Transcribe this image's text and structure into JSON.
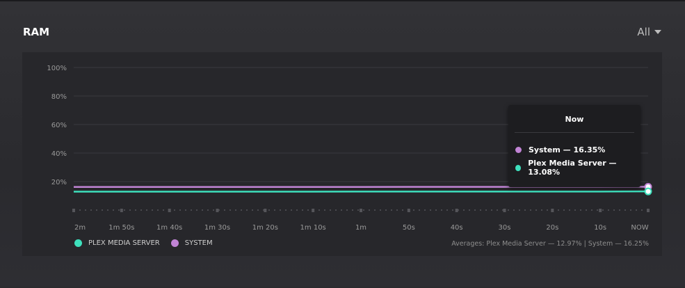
{
  "panel": {
    "title": "RAM",
    "filter_label": "All"
  },
  "colors": {
    "plex": "#3ee0bd",
    "system": "#c184d5"
  },
  "legend": [
    {
      "label": "PLEX MEDIA SERVER",
      "color": "#3ee0bd"
    },
    {
      "label": "SYSTEM",
      "color": "#c184d5"
    }
  ],
  "averages_text": "Averages: Plex Media Server — 12.97% | System — 16.25%",
  "tooltip": {
    "title": "Now",
    "rows": [
      {
        "text": "System — 16.35%",
        "color": "#c184d5"
      },
      {
        "text": "Plex Media Server — 13.08%",
        "color": "#3ee0bd"
      }
    ]
  },
  "chart_data": {
    "type": "line",
    "title": "RAM",
    "xlabel": "",
    "ylabel": "",
    "ylim": [
      0,
      100
    ],
    "y_ticks": [
      "20%",
      "40%",
      "60%",
      "80%",
      "100%"
    ],
    "y_tick_values": [
      20,
      40,
      60,
      80,
      100
    ],
    "categories": [
      "2m",
      "1m 50s",
      "1m 40s",
      "1m 30s",
      "1m 20s",
      "1m 10s",
      "1m",
      "50s",
      "40s",
      "30s",
      "20s",
      "10s",
      "NOW"
    ],
    "series": [
      {
        "name": "System",
        "color": "#c184d5",
        "values": [
          16.2,
          16.2,
          16.2,
          16.2,
          16.2,
          16.2,
          16.2,
          16.3,
          16.3,
          16.3,
          16.3,
          16.3,
          16.35
        ]
      },
      {
        "name": "Plex Media Server",
        "color": "#3ee0bd",
        "values": [
          12.9,
          12.9,
          12.9,
          12.9,
          12.9,
          12.9,
          13.0,
          13.0,
          13.0,
          13.0,
          13.0,
          13.0,
          13.08
        ]
      }
    ],
    "grid": true,
    "legend_position": "bottom-left"
  }
}
